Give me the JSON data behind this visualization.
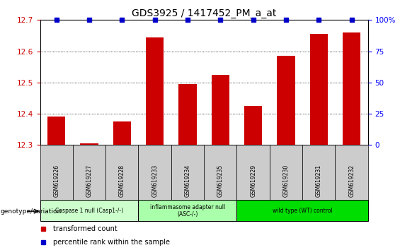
{
  "title": "GDS3925 / 1417452_PM_a_at",
  "samples": [
    "GSM619226",
    "GSM619227",
    "GSM619228",
    "GSM619233",
    "GSM619234",
    "GSM619235",
    "GSM619229",
    "GSM619230",
    "GSM619231",
    "GSM619232"
  ],
  "bar_values": [
    12.39,
    12.305,
    12.375,
    12.645,
    12.495,
    12.525,
    12.425,
    12.585,
    12.655,
    12.66
  ],
  "bar_color": "#cc0000",
  "dot_color": "#0000cc",
  "ylim_left": [
    12.3,
    12.7
  ],
  "ylim_right": [
    0,
    100
  ],
  "yticks_left": [
    12.3,
    12.4,
    12.5,
    12.6,
    12.7
  ],
  "yticks_right": [
    0,
    25,
    50,
    75,
    100
  ],
  "groups": [
    {
      "label": "Caspase 1 null (Casp1-/-)",
      "start": 0,
      "end": 3,
      "color": "#ccffcc"
    },
    {
      "label": "inflammasome adapter null\n(ASC-/-)",
      "start": 3,
      "end": 6,
      "color": "#aaffaa"
    },
    {
      "label": "wild type (WT) control",
      "start": 6,
      "end": 10,
      "color": "#00dd00"
    }
  ],
  "legend_bar_label": "transformed count",
  "legend_dot_label": "percentile rank within the sample",
  "genotype_label": "genotype/variation",
  "bar_width": 0.55,
  "bg_color": "#ffffff",
  "tick_area_color": "#cccccc",
  "title_fontsize": 10
}
